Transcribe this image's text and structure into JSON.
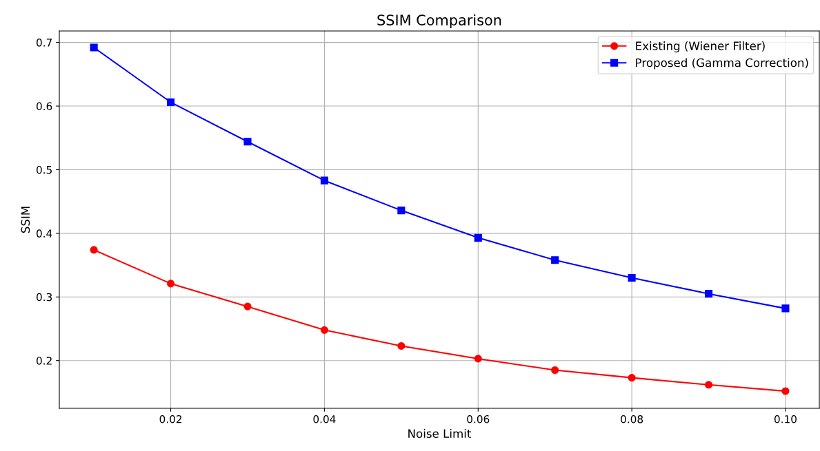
{
  "chart_data": {
    "type": "line",
    "title": "SSIM Comparison",
    "xlabel": "Noise Limit",
    "ylabel": "SSIM",
    "x": [
      0.01,
      0.02,
      0.03,
      0.04,
      0.05,
      0.06,
      0.07,
      0.08,
      0.09,
      0.1
    ],
    "series": [
      {
        "name": "Existing (Wiener Filter)",
        "color": "#ff0000",
        "marker": "circle",
        "values": [
          0.374,
          0.321,
          0.285,
          0.248,
          0.223,
          0.203,
          0.185,
          0.173,
          0.162,
          0.152
        ]
      },
      {
        "name": "Proposed (Gamma Correction)",
        "color": "#0000ff",
        "marker": "square",
        "values": [
          0.692,
          0.606,
          0.544,
          0.483,
          0.436,
          0.393,
          0.358,
          0.33,
          0.305,
          0.282
        ]
      }
    ],
    "xlim": [
      0.0055,
      0.1044
    ],
    "ylim": [
      0.125,
      0.718
    ],
    "xticks": [
      0.02,
      0.04,
      0.06,
      0.08,
      {
        "value": 0.1,
        "label": "0.10"
      }
    ],
    "yticks": [
      0.2,
      0.3,
      0.4,
      0.5,
      0.6,
      0.7
    ],
    "grid": true,
    "legend": "top right"
  }
}
